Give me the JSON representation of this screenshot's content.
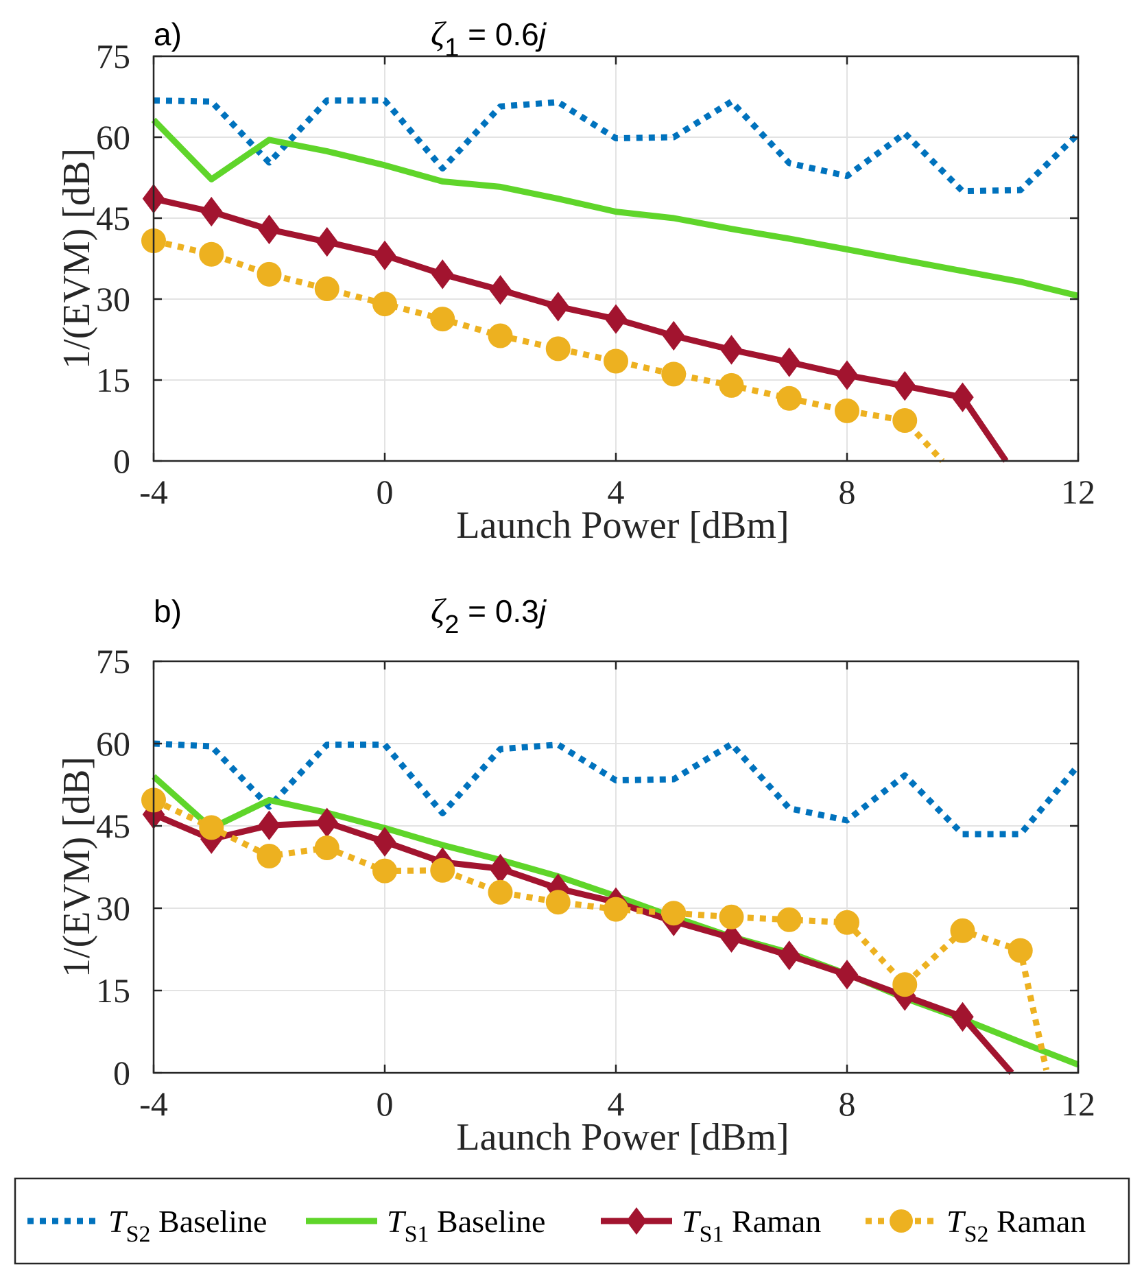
{
  "figure": {
    "legend": [
      {
        "symbol": "T",
        "sub": "S2",
        "label": "Baseline",
        "color": "#0072BD",
        "style": "dotted",
        "marker": "none"
      },
      {
        "symbol": "T",
        "sub": "S1",
        "label": "Baseline",
        "color": "#5FD52A",
        "style": "solid",
        "marker": "none"
      },
      {
        "symbol": "T",
        "sub": "S1",
        "label": "Raman",
        "color": "#A2142F",
        "style": "solid",
        "marker": "diamond"
      },
      {
        "symbol": "T",
        "sub": "S2",
        "label": "Raman",
        "color": "#EDB120",
        "style": "dotted",
        "marker": "circle"
      }
    ]
  },
  "chart_data": [
    {
      "type": "line",
      "panel_label": "a)",
      "annotation": {
        "symbol": "ζ",
        "subscript": "1",
        "rest": " = 0.6",
        "suffix": "j"
      },
      "xlabel": "Launch Power [dBm]",
      "ylabel": "1/(EVM) [dB]",
      "xlim": [
        -4,
        12
      ],
      "ylim": [
        0,
        75
      ],
      "xticks": [
        -4,
        0,
        4,
        8,
        12
      ],
      "yticks": [
        0,
        15,
        30,
        45,
        60,
        75
      ],
      "xtick_labels": [
        "-4",
        "0",
        "4",
        "8",
        "12"
      ],
      "ytick_labels": [
        "0",
        "15",
        "30",
        "45",
        "60",
        "75"
      ],
      "grid": true,
      "series": [
        {
          "name": "T_S2 Baseline",
          "x": [
            -4,
            -3,
            -2,
            -1,
            0,
            1,
            2,
            3,
            4,
            5,
            6,
            7,
            8,
            9,
            10,
            11,
            12
          ],
          "y": [
            66.8,
            66.6,
            55.3,
            66.8,
            66.8,
            54.2,
            65.7,
            66.5,
            59.8,
            60.0,
            66.6,
            55.2,
            52.8,
            60.7,
            50.0,
            50.2,
            60.6
          ]
        },
        {
          "name": "T_S1 Baseline",
          "x": [
            -4,
            -3,
            -2,
            -1,
            0,
            1,
            2,
            3,
            4,
            5,
            6,
            7,
            8,
            9,
            10,
            11,
            12
          ],
          "y": [
            63.2,
            52.2,
            59.5,
            57.4,
            54.8,
            51.8,
            50.8,
            48.6,
            46.2,
            45.0,
            43.0,
            41.2,
            39.2,
            37.2,
            35.2,
            33.2,
            30.6
          ]
        },
        {
          "name": "T_S1 Raman",
          "x": [
            -4,
            -3,
            -2,
            -1,
            0,
            1,
            2,
            3,
            4,
            5,
            6,
            7,
            8,
            9,
            10,
            10.75
          ],
          "y": [
            48.6,
            46.2,
            42.9,
            40.6,
            38.1,
            34.6,
            31.7,
            28.6,
            26.3,
            23.2,
            20.6,
            18.3,
            15.9,
            13.9,
            11.8,
            0
          ]
        },
        {
          "name": "T_S2 Raman",
          "x": [
            -4,
            -3,
            -2,
            -1,
            0,
            1,
            2,
            3,
            4,
            5,
            6,
            7,
            8,
            9,
            9.65
          ],
          "y": [
            40.8,
            38.3,
            34.6,
            31.9,
            29.1,
            26.3,
            23.2,
            20.8,
            18.5,
            16.1,
            14.0,
            11.6,
            9.3,
            7.5,
            0
          ]
        }
      ]
    },
    {
      "type": "line",
      "panel_label": "b)",
      "annotation": {
        "symbol": "ζ",
        "subscript": "2",
        "rest": " = 0.3",
        "suffix": "j"
      },
      "xlabel": "Launch Power [dBm]",
      "ylabel": "1/(EVM) [dB]",
      "xlim": [
        -4,
        12
      ],
      "ylim": [
        0,
        75
      ],
      "xticks": [
        -4,
        0,
        4,
        8,
        12
      ],
      "yticks": [
        0,
        15,
        30,
        45,
        60,
        75
      ],
      "xtick_labels": [
        "-4",
        "0",
        "4",
        "8",
        "12"
      ],
      "ytick_labels": [
        "0",
        "15",
        "30",
        "45",
        "60",
        "75"
      ],
      "grid": true,
      "series": [
        {
          "name": "T_S2 Baseline",
          "x": [
            -4,
            -3,
            -2,
            -1,
            0,
            1,
            2,
            3,
            4,
            5,
            6,
            7,
            8,
            9,
            10,
            11,
            12
          ],
          "y": [
            60.0,
            59.5,
            48.5,
            59.8,
            59.8,
            47.3,
            59.0,
            59.8,
            53.3,
            53.5,
            59.9,
            48.2,
            46.0,
            54.2,
            43.5,
            43.5,
            56.0
          ]
        },
        {
          "name": "T_S1 Baseline",
          "x": [
            -4,
            -3,
            -2,
            -1,
            0,
            1,
            2,
            3,
            4,
            5,
            6,
            7,
            8,
            9,
            10,
            11,
            12
          ],
          "y": [
            54.0,
            44.6,
            49.7,
            47.4,
            44.6,
            41.5,
            38.8,
            35.8,
            32.2,
            28.4,
            24.8,
            21.9,
            18.0,
            13.6,
            9.8,
            5.6,
            1.5
          ]
        },
        {
          "name": "T_S1 Raman",
          "x": [
            -4,
            -3,
            -2,
            -1,
            0,
            1,
            2,
            3,
            4,
            5,
            6,
            7,
            8,
            9,
            10,
            10.85
          ],
          "y": [
            47.1,
            42.6,
            45.1,
            45.6,
            42.1,
            38.4,
            37.2,
            33.6,
            31.1,
            27.6,
            24.6,
            21.4,
            17.9,
            14.0,
            10.2,
            0
          ]
        },
        {
          "name": "T_S2 Raman",
          "x": [
            -4,
            -3,
            -2,
            -1,
            0,
            1,
            2,
            3,
            4,
            5,
            6,
            7,
            8,
            9,
            10,
            11,
            11.45
          ],
          "y": [
            49.7,
            44.7,
            39.5,
            41.0,
            36.8,
            36.9,
            32.9,
            31.1,
            29.8,
            29.1,
            28.4,
            27.9,
            27.4,
            16.1,
            25.9,
            22.3,
            0.5
          ]
        }
      ]
    }
  ]
}
